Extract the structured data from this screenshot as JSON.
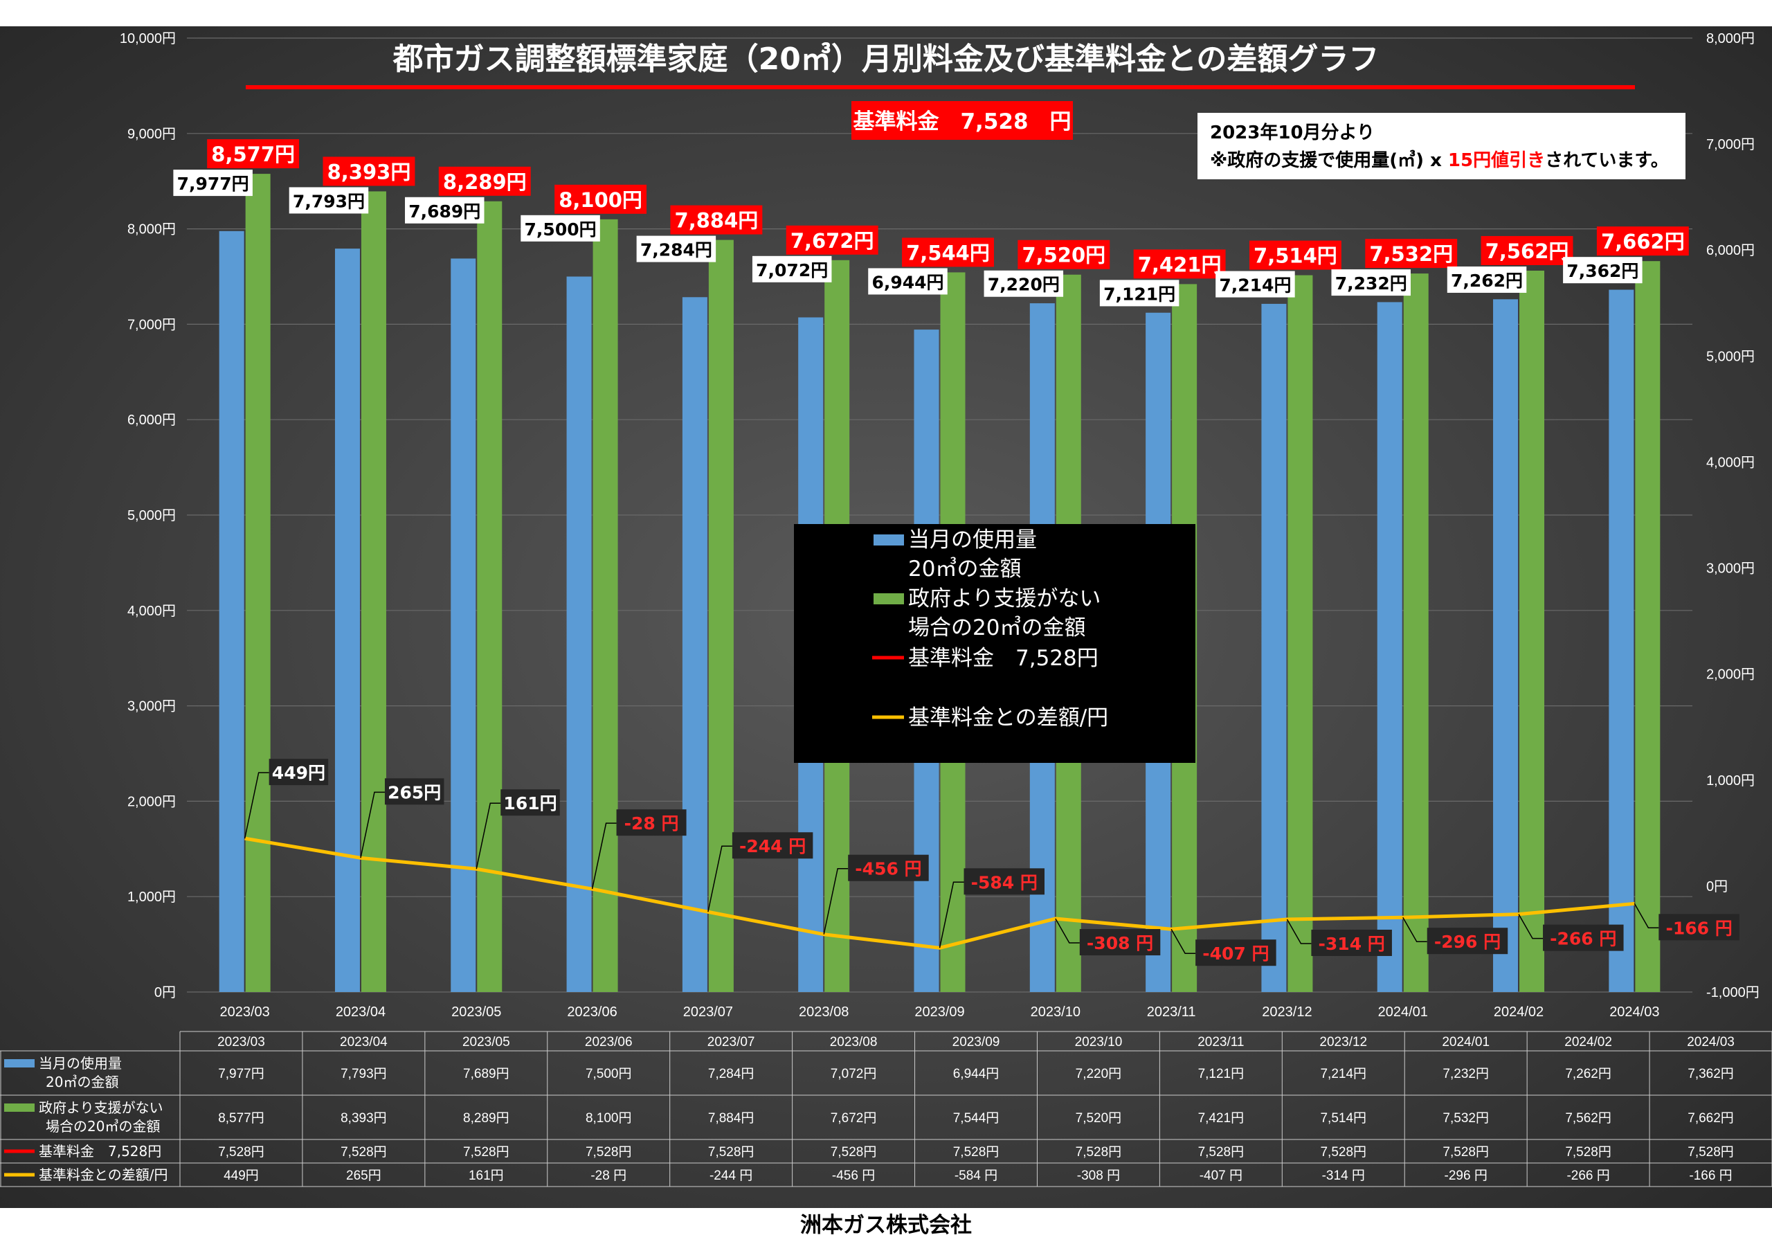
{
  "chart_data": {
    "type": "bar",
    "title": "都市ガス調整額標準家庭（20㎥）月別料金及び基準料金との差額グラフ",
    "categories": [
      "2023/03",
      "2023/04",
      "2023/05",
      "2023/06",
      "2023/07",
      "2023/08",
      "2023/09",
      "2023/10",
      "2023/11",
      "2023/12",
      "2024/01",
      "2024/02",
      "2024/03"
    ],
    "y_left": {
      "min": 0,
      "max": 10000,
      "step": 1000,
      "ticks": [
        "0円",
        "1,000円",
        "2,000円",
        "3,000円",
        "4,000円",
        "5,000円",
        "6,000円",
        "7,000円",
        "8,000円",
        "9,000円",
        "10,000円"
      ]
    },
    "y_right": {
      "min": -1000,
      "max": 8000,
      "step": 1000,
      "ticks": [
        "-1,000円",
        "0円",
        "1,000円",
        "2,000円",
        "3,000円",
        "4,000円",
        "5,000円",
        "6,000円",
        "7,000円",
        "8,000円"
      ]
    },
    "series": [
      {
        "name": "当月の使用量20㎥の金額",
        "type": "bar",
        "color": "#5b9bd5",
        "axis": "left",
        "values": [
          7977,
          7793,
          7689,
          7500,
          7284,
          7072,
          6944,
          7220,
          7121,
          7214,
          7232,
          7262,
          7362
        ],
        "labels": [
          "7,977円",
          "7,793円",
          "7,689円",
          "7,500円",
          "7,284円",
          "7,072円",
          "6,944円",
          "7,220円",
          "7,121円",
          "7,214円",
          "7,232円",
          "7,262円",
          "7,362円"
        ]
      },
      {
        "name": "政府より支援がない場合の20㎥の金額",
        "type": "bar",
        "color": "#70ad47",
        "axis": "left",
        "values": [
          8577,
          8393,
          8289,
          8100,
          7884,
          7672,
          7544,
          7520,
          7421,
          7514,
          7532,
          7562,
          7662
        ],
        "labels": [
          "8,577円",
          "8,393円",
          "8,289円",
          "8,100円",
          "7,884円",
          "7,672円",
          "7,544円",
          "7,520円",
          "7,421円",
          "7,514円",
          "7,532円",
          "7,562円",
          "7,662円"
        ]
      },
      {
        "name": "基準料金　7,528円",
        "type": "line",
        "color": "#ff0000",
        "axis": "left",
        "values": [
          7528,
          7528,
          7528,
          7528,
          7528,
          7528,
          7528,
          7528,
          7528,
          7528,
          7528,
          7528,
          7528
        ]
      },
      {
        "name": "基準料金との差額/円",
        "type": "line",
        "color": "#ffc000",
        "axis": "right",
        "values": [
          449,
          265,
          161,
          -28,
          -244,
          -456,
          -584,
          -308,
          -407,
          -314,
          -296,
          -266,
          -166
        ],
        "labels": [
          "449円",
          "265円",
          "161円",
          "-28 円",
          "-244 円",
          "-456 円",
          "-584 円",
          "-308 円",
          "-407 円",
          "-314 円",
          "-296 円",
          "-266 円",
          "-166 円"
        ]
      }
    ],
    "legend": {
      "items": [
        "当月の使用量",
        "20㎥の金額",
        "政府より支援がない",
        "場合の20㎥の金額",
        "基準料金　7,528円",
        "基準料金との差額/円"
      ],
      "placement": "center"
    },
    "annotations": {
      "base_price": "基準料金　7,528　円",
      "note_line1": "2023年10月分より",
      "note_line2_a": "※政府の支援で使用量(㎥) x ",
      "note_line2_b": "15円値引き",
      "note_line2_c": "されています。"
    },
    "table": {
      "headers": [
        "2023/03",
        "2023/04",
        "2023/05",
        "2023/06",
        "2023/07",
        "2023/08",
        "2023/09",
        "2023/10",
        "2023/11",
        "2023/12",
        "2024/01",
        "2024/02",
        "2024/03"
      ],
      "rows": [
        {
          "label": [
            "当月の使用量",
            "20㎥の金額"
          ],
          "color": "#5b9bd5",
          "cells": [
            "7,977円",
            "7,793円",
            "7,689円",
            "7,500円",
            "7,284円",
            "7,072円",
            "6,944円",
            "7,220円",
            "7,121円",
            "7,214円",
            "7,232円",
            "7,262円",
            "7,362円"
          ]
        },
        {
          "label": [
            "政府より支援がない",
            "場合の20㎥の金額"
          ],
          "color": "#70ad47",
          "cells": [
            "8,577円",
            "8,393円",
            "8,289円",
            "8,100円",
            "7,884円",
            "7,672円",
            "7,544円",
            "7,520円",
            "7,421円",
            "7,514円",
            "7,532円",
            "7,562円",
            "7,662円"
          ]
        },
        {
          "label": [
            "基準料金　7,528円"
          ],
          "color": "#ff0000",
          "cells": [
            "7,528円",
            "7,528円",
            "7,528円",
            "7,528円",
            "7,528円",
            "7,528円",
            "7,528円",
            "7,528円",
            "7,528円",
            "7,528円",
            "7,528円",
            "7,528円",
            "7,528円"
          ]
        },
        {
          "label": [
            "基準料金との差額/円"
          ],
          "color": "#ffc000",
          "cells": [
            "449円",
            "265円",
            "161円",
            "-28 円",
            "-244 円",
            "-456 円",
            "-584 円",
            "-308 円",
            "-407 円",
            "-314 円",
            "-296 円",
            "-266 円",
            "-166 円"
          ]
        }
      ]
    },
    "grid": true
  },
  "footer": {
    "company": "洲本ガス株式会社"
  }
}
